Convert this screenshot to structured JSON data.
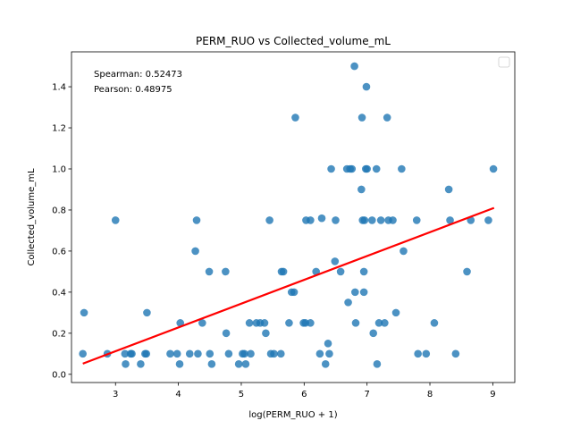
{
  "chart_data": {
    "type": "scatter",
    "title": "PERM_RUO vs Collected_volume_mL",
    "xlabel": "log(PERM_RUO + 1)",
    "ylabel": "Collected_volume_mL",
    "xlim": [
      2.3,
      9.35
    ],
    "ylim": [
      -0.04,
      1.57
    ],
    "xticks": [
      3,
      4,
      5,
      6,
      7,
      8,
      9
    ],
    "yticks": [
      0.0,
      0.2,
      0.4,
      0.6,
      0.8,
      1.0,
      1.2,
      1.4
    ],
    "grid": false,
    "legend": "top-right",
    "annotations": [
      "Spearman: 0.52473",
      "Pearson: 0.48975"
    ],
    "colors": {
      "points": "#1f77b4",
      "fit_line": "#ff0000"
    },
    "points": [
      [
        2.48,
        0.1
      ],
      [
        2.5,
        0.3
      ],
      [
        2.87,
        0.1
      ],
      [
        3.0,
        0.75
      ],
      [
        3.15,
        0.1
      ],
      [
        3.16,
        0.05
      ],
      [
        3.24,
        0.1
      ],
      [
        3.26,
        0.1
      ],
      [
        3.4,
        0.05
      ],
      [
        3.47,
        0.1
      ],
      [
        3.49,
        0.1
      ],
      [
        3.5,
        0.3
      ],
      [
        3.87,
        0.1
      ],
      [
        3.98,
        0.1
      ],
      [
        4.02,
        0.05
      ],
      [
        4.03,
        0.25
      ],
      [
        4.18,
        0.1
      ],
      [
        4.27,
        0.6
      ],
      [
        4.29,
        0.75
      ],
      [
        4.31,
        0.1
      ],
      [
        4.38,
        0.25
      ],
      [
        4.49,
        0.5
      ],
      [
        4.5,
        0.1
      ],
      [
        4.53,
        0.05
      ],
      [
        4.75,
        0.5
      ],
      [
        4.76,
        0.2
      ],
      [
        4.8,
        0.1
      ],
      [
        4.96,
        0.05
      ],
      [
        5.02,
        0.1
      ],
      [
        5.05,
        0.1
      ],
      [
        5.07,
        0.05
      ],
      [
        5.13,
        0.25
      ],
      [
        5.15,
        0.1
      ],
      [
        5.24,
        0.25
      ],
      [
        5.3,
        0.25
      ],
      [
        5.37,
        0.25
      ],
      [
        5.39,
        0.2
      ],
      [
        5.45,
        0.75
      ],
      [
        5.47,
        0.1
      ],
      [
        5.52,
        0.1
      ],
      [
        5.63,
        0.1
      ],
      [
        5.64,
        0.5
      ],
      [
        5.67,
        0.5
      ],
      [
        5.76,
        0.25
      ],
      [
        5.8,
        0.4
      ],
      [
        5.84,
        0.4
      ],
      [
        5.86,
        1.25
      ],
      [
        5.99,
        0.25
      ],
      [
        6.02,
        0.25
      ],
      [
        6.03,
        0.75
      ],
      [
        6.1,
        0.25
      ],
      [
        6.1,
        0.75
      ],
      [
        6.19,
        0.5
      ],
      [
        6.25,
        0.1
      ],
      [
        6.28,
        0.76
      ],
      [
        6.34,
        0.05
      ],
      [
        6.38,
        0.15
      ],
      [
        6.4,
        0.1
      ],
      [
        6.43,
        1.0
      ],
      [
        6.49,
        0.55
      ],
      [
        6.5,
        0.75
      ],
      [
        6.58,
        0.5
      ],
      [
        6.68,
        1.0
      ],
      [
        6.7,
        0.35
      ],
      [
        6.73,
        1.0
      ],
      [
        6.76,
        1.0
      ],
      [
        6.8,
        1.5
      ],
      [
        6.81,
        0.4
      ],
      [
        6.82,
        0.25
      ],
      [
        6.91,
        0.9
      ],
      [
        6.92,
        1.25
      ],
      [
        6.93,
        0.75
      ],
      [
        6.95,
        0.5
      ],
      [
        6.95,
        0.4
      ],
      [
        6.96,
        0.75
      ],
      [
        6.98,
        1.0
      ],
      [
        6.99,
        1.4
      ],
      [
        7.0,
        1.0
      ],
      [
        7.08,
        0.75
      ],
      [
        7.1,
        0.2
      ],
      [
        7.15,
        1.0
      ],
      [
        7.16,
        0.05
      ],
      [
        7.19,
        0.25
      ],
      [
        7.22,
        0.75
      ],
      [
        7.28,
        0.25
      ],
      [
        7.32,
        1.25
      ],
      [
        7.34,
        0.75
      ],
      [
        7.41,
        0.75
      ],
      [
        7.46,
        0.3
      ],
      [
        7.55,
        1.0
      ],
      [
        7.58,
        0.6
      ],
      [
        7.79,
        0.75
      ],
      [
        7.81,
        0.1
      ],
      [
        7.94,
        0.1
      ],
      [
        8.07,
        0.25
      ],
      [
        8.3,
        0.9
      ],
      [
        8.32,
        0.75
      ],
      [
        8.41,
        0.1
      ],
      [
        8.59,
        0.5
      ],
      [
        8.65,
        0.75
      ],
      [
        8.93,
        0.75
      ],
      [
        9.01,
        1.0
      ]
    ],
    "fit_line": {
      "x": [
        2.48,
        9.02
      ],
      "y": [
        0.052,
        0.81
      ]
    }
  }
}
